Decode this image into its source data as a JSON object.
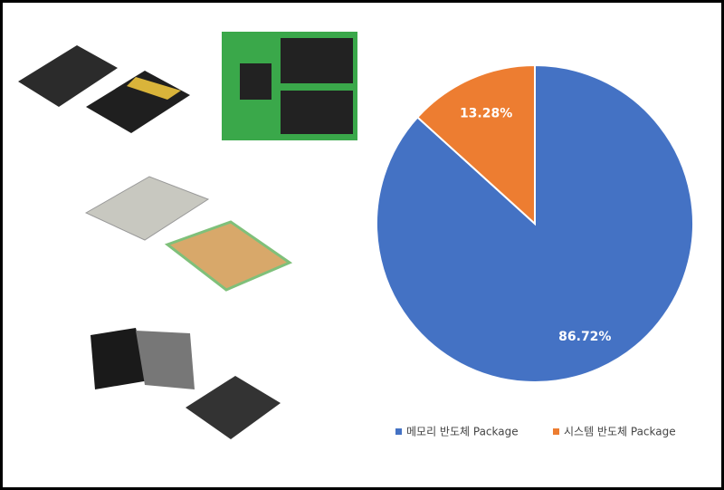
{
  "chart_data": {
    "type": "pie",
    "categories": [
      "메모리 반도체 Package",
      "시스템 반도체 Package"
    ],
    "values": [
      86.72,
      13.28
    ],
    "value_labels": [
      "86.72%",
      "13.28%"
    ],
    "colors": [
      "#4472c4",
      "#ed7d31"
    ]
  }
}
